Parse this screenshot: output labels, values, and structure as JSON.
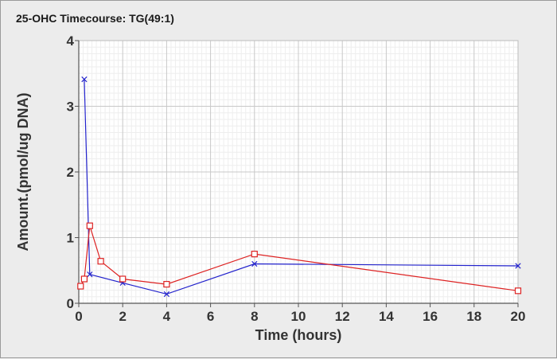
{
  "chart_data": {
    "type": "line",
    "title": "25-OHC Timecourse: TG(49:1)",
    "xlabel": "Time (hours)",
    "ylabel": "Amount.(pmol/ug DNA)",
    "xlim": [
      0,
      20
    ],
    "ylim": [
      0,
      4
    ],
    "x_ticks": [
      "0",
      "2",
      "4",
      "6",
      "8",
      "10",
      "12",
      "14",
      "16",
      "18",
      "20"
    ],
    "y_ticks": [
      "0",
      "1",
      "2",
      "3",
      "4"
    ],
    "grid": true,
    "legend": "none",
    "series": [
      {
        "color": "#2222cc",
        "marker": "x",
        "x": [
          0.25,
          0.5,
          2,
          4,
          8,
          20
        ],
        "y": [
          3.41,
          0.44,
          0.31,
          0.14,
          0.6,
          0.57
        ]
      },
      {
        "color": "#dd2222",
        "marker": "square",
        "x": [
          0.083,
          0.25,
          0.5,
          1,
          2,
          4,
          8,
          20
        ],
        "y": [
          0.26,
          0.37,
          1.18,
          0.64,
          0.37,
          0.29,
          0.75,
          0.19
        ]
      }
    ]
  }
}
